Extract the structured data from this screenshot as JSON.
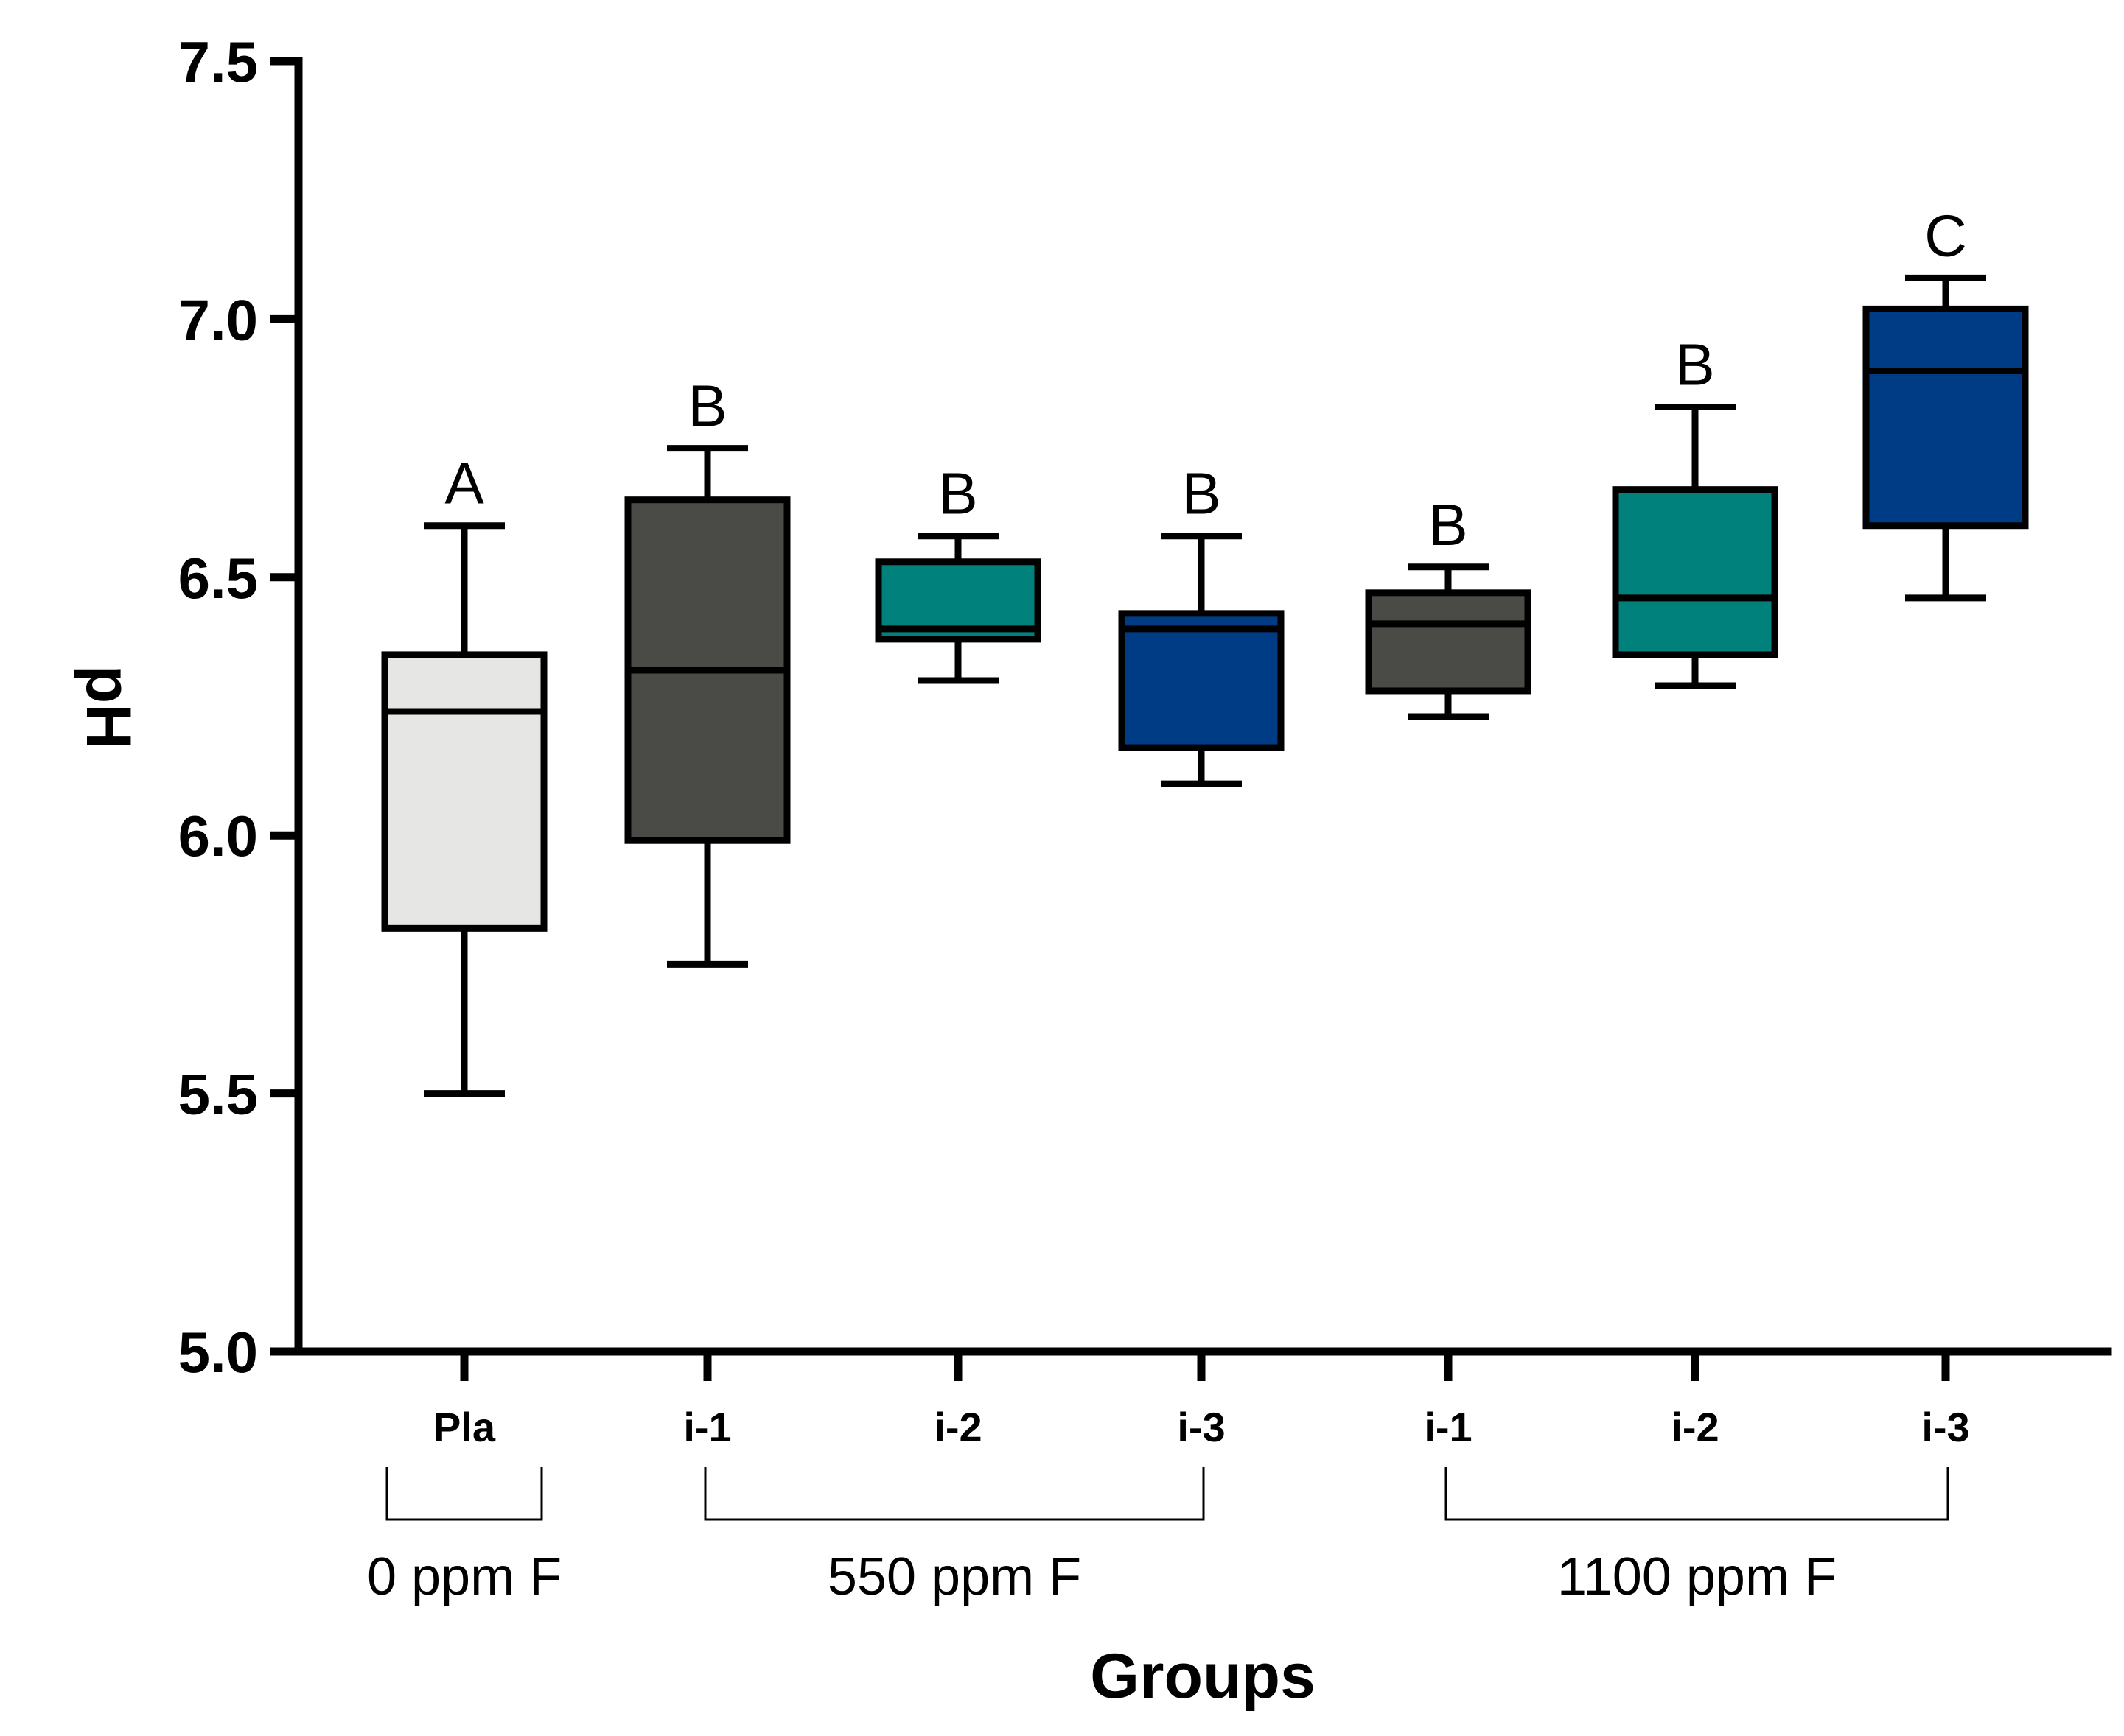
{
  "chart_data": {
    "type": "box",
    "ylabel": "pH",
    "xlabel": "Groups",
    "ylim": [
      5.0,
      7.5
    ],
    "yticks": [
      "5.0",
      "5.5",
      "6.0",
      "6.5",
      "7.0",
      "7.5"
    ],
    "yticks_values": [
      5.0,
      5.5,
      6.0,
      6.5,
      7.0,
      7.5
    ],
    "grid": false,
    "boxes": [
      {
        "label": "Pla",
        "min": 5.5,
        "q1": 5.82,
        "median": 6.24,
        "q3": 6.35,
        "max": 6.6,
        "letter": "A",
        "color": "#e6e6e4"
      },
      {
        "label": "i-1",
        "min": 5.75,
        "q1": 5.99,
        "median": 6.32,
        "q3": 6.65,
        "max": 6.75,
        "letter": "B",
        "color": "#4a4a46"
      },
      {
        "label": "i-2",
        "min": 6.3,
        "q1": 6.38,
        "median": 6.4,
        "q3": 6.53,
        "max": 6.58,
        "letter": "B",
        "color": "#00817c"
      },
      {
        "label": "i-3",
        "min": 6.1,
        "q1": 6.17,
        "median": 6.4,
        "q3": 6.43,
        "max": 6.58,
        "letter": "B",
        "color": "#003c85"
      },
      {
        "label": "i-1",
        "min": 6.23,
        "q1": 6.28,
        "median": 6.41,
        "q3": 6.47,
        "max": 6.52,
        "letter": "B",
        "color": "#4a4a46"
      },
      {
        "label": "i-2",
        "min": 6.29,
        "q1": 6.35,
        "median": 6.46,
        "q3": 6.67,
        "max": 6.83,
        "letter": "B",
        "color": "#00817c"
      },
      {
        "label": "i-3",
        "min": 6.46,
        "q1": 6.6,
        "median": 6.9,
        "q3": 7.02,
        "max": 7.08,
        "letter": "C",
        "color": "#003c85"
      }
    ],
    "groups": [
      {
        "label": "0 ppm F",
        "from": 0,
        "to": 0
      },
      {
        "label": "550 ppm F",
        "from": 1,
        "to": 3
      },
      {
        "label": "1100 ppm F",
        "from": 4,
        "to": 6
      }
    ]
  }
}
